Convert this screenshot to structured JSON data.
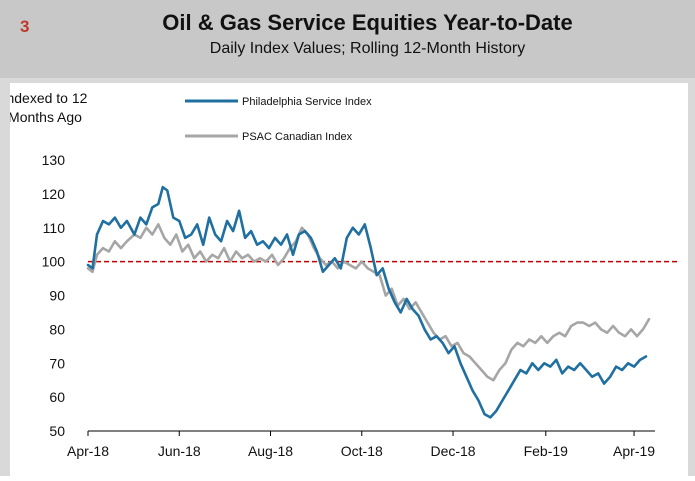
{
  "page": {
    "slide_number": "3",
    "title": "Oil & Gas Service Equities Year-to-Date",
    "subtitle": "Daily Index Values; Rolling 12-Month History"
  },
  "colors": {
    "philadelphia": "#1f6fa0",
    "psac": "#a6a6a6",
    "reference": "#c00000",
    "slide_number": "#c0392b"
  },
  "chart_data": {
    "type": "line",
    "title": "Oil & Gas Service Equities Year-to-Date",
    "subtitle": "Daily Index Values; Rolling 12-Month History",
    "ylabel_lines": [
      "Indexed to 12",
      "Months Ago"
    ],
    "xlabel": "",
    "ylim": [
      50,
      130
    ],
    "yticks": [
      50,
      60,
      70,
      80,
      90,
      100,
      110,
      120,
      130
    ],
    "x_tick_labels": [
      "Apr-18",
      "Jun-18",
      "Aug-18",
      "Oct-18",
      "Dec-18",
      "Feb-19",
      "Apr-19"
    ],
    "x_tick_dates": [
      "2018-04-01",
      "2018-06-01",
      "2018-08-01",
      "2018-10-01",
      "2018-12-01",
      "2019-02-01",
      "2019-04-01"
    ],
    "xlim": [
      "2018-04-01",
      "2019-04-15"
    ],
    "reference_line": {
      "y": 100,
      "style": "dashed"
    },
    "grid": false,
    "legend_position": "top",
    "series": [
      {
        "name": "Philadelphia Service Index",
        "points": [
          [
            "2018-04-01",
            99
          ],
          [
            "2018-04-04",
            98
          ],
          [
            "2018-04-07",
            108
          ],
          [
            "2018-04-11",
            112
          ],
          [
            "2018-04-15",
            111
          ],
          [
            "2018-04-19",
            113
          ],
          [
            "2018-04-23",
            110
          ],
          [
            "2018-04-27",
            112
          ],
          [
            "2018-05-02",
            108
          ],
          [
            "2018-05-06",
            113
          ],
          [
            "2018-05-10",
            111
          ],
          [
            "2018-05-14",
            116
          ],
          [
            "2018-05-18",
            117
          ],
          [
            "2018-05-21",
            122
          ],
          [
            "2018-05-24",
            121
          ],
          [
            "2018-05-28",
            113
          ],
          [
            "2018-06-01",
            112
          ],
          [
            "2018-06-05",
            107
          ],
          [
            "2018-06-09",
            108
          ],
          [
            "2018-06-13",
            111
          ],
          [
            "2018-06-17",
            105
          ],
          [
            "2018-06-21",
            113
          ],
          [
            "2018-06-25",
            108
          ],
          [
            "2018-06-29",
            106
          ],
          [
            "2018-07-03",
            112
          ],
          [
            "2018-07-07",
            109
          ],
          [
            "2018-07-11",
            115
          ],
          [
            "2018-07-15",
            107
          ],
          [
            "2018-07-19",
            109
          ],
          [
            "2018-07-23",
            105
          ],
          [
            "2018-07-27",
            106
          ],
          [
            "2018-07-31",
            104
          ],
          [
            "2018-08-04",
            107
          ],
          [
            "2018-08-08",
            105
          ],
          [
            "2018-08-12",
            108
          ],
          [
            "2018-08-16",
            102
          ],
          [
            "2018-08-20",
            108
          ],
          [
            "2018-08-24",
            109
          ],
          [
            "2018-08-28",
            107
          ],
          [
            "2018-09-01",
            103
          ],
          [
            "2018-09-05",
            97
          ],
          [
            "2018-09-09",
            99
          ],
          [
            "2018-09-13",
            101
          ],
          [
            "2018-09-17",
            98
          ],
          [
            "2018-09-21",
            107
          ],
          [
            "2018-09-25",
            110
          ],
          [
            "2018-09-29",
            108
          ],
          [
            "2018-10-03",
            111
          ],
          [
            "2018-10-07",
            104
          ],
          [
            "2018-10-11",
            96
          ],
          [
            "2018-10-15",
            98
          ],
          [
            "2018-10-19",
            92
          ],
          [
            "2018-10-23",
            88
          ],
          [
            "2018-10-27",
            85
          ],
          [
            "2018-10-31",
            89
          ],
          [
            "2018-11-04",
            86
          ],
          [
            "2018-11-08",
            84
          ],
          [
            "2018-11-12",
            80
          ],
          [
            "2018-11-16",
            77
          ],
          [
            "2018-11-20",
            78
          ],
          [
            "2018-11-24",
            76
          ],
          [
            "2018-11-28",
            73
          ],
          [
            "2018-12-02",
            75
          ],
          [
            "2018-12-06",
            70
          ],
          [
            "2018-12-10",
            66
          ],
          [
            "2018-12-14",
            62
          ],
          [
            "2018-12-18",
            59
          ],
          [
            "2018-12-22",
            55
          ],
          [
            "2018-12-26",
            54
          ],
          [
            "2018-12-30",
            56
          ],
          [
            "2019-01-03",
            59
          ],
          [
            "2019-01-07",
            62
          ],
          [
            "2019-01-11",
            65
          ],
          [
            "2019-01-15",
            68
          ],
          [
            "2019-01-19",
            67
          ],
          [
            "2019-01-23",
            70
          ],
          [
            "2019-01-27",
            68
          ],
          [
            "2019-01-31",
            70
          ],
          [
            "2019-02-04",
            69
          ],
          [
            "2019-02-08",
            71
          ],
          [
            "2019-02-12",
            67
          ],
          [
            "2019-02-16",
            69
          ],
          [
            "2019-02-20",
            68
          ],
          [
            "2019-02-24",
            70
          ],
          [
            "2019-02-28",
            68
          ],
          [
            "2019-03-04",
            66
          ],
          [
            "2019-03-08",
            67
          ],
          [
            "2019-03-12",
            64
          ],
          [
            "2019-03-16",
            66
          ],
          [
            "2019-03-20",
            69
          ],
          [
            "2019-03-24",
            68
          ],
          [
            "2019-03-28",
            70
          ],
          [
            "2019-04-01",
            69
          ],
          [
            "2019-04-05",
            71
          ],
          [
            "2019-04-09",
            72
          ]
        ]
      },
      {
        "name": "PSAC Canadian Index",
        "points": [
          [
            "2018-04-01",
            98
          ],
          [
            "2018-04-04",
            97
          ],
          [
            "2018-04-07",
            102
          ],
          [
            "2018-04-11",
            104
          ],
          [
            "2018-04-15",
            103
          ],
          [
            "2018-04-19",
            106
          ],
          [
            "2018-04-23",
            104
          ],
          [
            "2018-04-27",
            106
          ],
          [
            "2018-05-02",
            108
          ],
          [
            "2018-05-06",
            107
          ],
          [
            "2018-05-10",
            110
          ],
          [
            "2018-05-14",
            108
          ],
          [
            "2018-05-18",
            111
          ],
          [
            "2018-05-22",
            107
          ],
          [
            "2018-05-26",
            105
          ],
          [
            "2018-05-30",
            108
          ],
          [
            "2018-06-03",
            103
          ],
          [
            "2018-06-07",
            105
          ],
          [
            "2018-06-11",
            101
          ],
          [
            "2018-06-15",
            103
          ],
          [
            "2018-06-19",
            100
          ],
          [
            "2018-06-23",
            102
          ],
          [
            "2018-06-27",
            101
          ],
          [
            "2018-07-01",
            104
          ],
          [
            "2018-07-05",
            100
          ],
          [
            "2018-07-09",
            103
          ],
          [
            "2018-07-13",
            101
          ],
          [
            "2018-07-17",
            102
          ],
          [
            "2018-07-21",
            100
          ],
          [
            "2018-07-25",
            101
          ],
          [
            "2018-07-29",
            100
          ],
          [
            "2018-08-02",
            102
          ],
          [
            "2018-08-06",
            99
          ],
          [
            "2018-08-10",
            101
          ],
          [
            "2018-08-14",
            104
          ],
          [
            "2018-08-18",
            106
          ],
          [
            "2018-08-22",
            110
          ],
          [
            "2018-08-26",
            108
          ],
          [
            "2018-08-30",
            104
          ],
          [
            "2018-09-03",
            101
          ],
          [
            "2018-09-07",
            99
          ],
          [
            "2018-09-11",
            100
          ],
          [
            "2018-09-15",
            98
          ],
          [
            "2018-09-19",
            100
          ],
          [
            "2018-09-23",
            99
          ],
          [
            "2018-09-27",
            98
          ],
          [
            "2018-10-01",
            100
          ],
          [
            "2018-10-05",
            98
          ],
          [
            "2018-10-09",
            97
          ],
          [
            "2018-10-13",
            96
          ],
          [
            "2018-10-17",
            90
          ],
          [
            "2018-10-21",
            92
          ],
          [
            "2018-10-25",
            87
          ],
          [
            "2018-10-29",
            89
          ],
          [
            "2018-11-02",
            86
          ],
          [
            "2018-11-06",
            88
          ],
          [
            "2018-11-10",
            85
          ],
          [
            "2018-11-14",
            82
          ],
          [
            "2018-11-18",
            79
          ],
          [
            "2018-11-22",
            77
          ],
          [
            "2018-11-26",
            78
          ],
          [
            "2018-11-30",
            75
          ],
          [
            "2018-12-04",
            76
          ],
          [
            "2018-12-08",
            73
          ],
          [
            "2018-12-12",
            72
          ],
          [
            "2018-12-16",
            70
          ],
          [
            "2018-12-20",
            68
          ],
          [
            "2018-12-24",
            66
          ],
          [
            "2018-12-28",
            65
          ],
          [
            "2019-01-01",
            68
          ],
          [
            "2019-01-05",
            70
          ],
          [
            "2019-01-09",
            74
          ],
          [
            "2019-01-13",
            76
          ],
          [
            "2019-01-17",
            75
          ],
          [
            "2019-01-21",
            77
          ],
          [
            "2019-01-25",
            76
          ],
          [
            "2019-01-29",
            78
          ],
          [
            "2019-02-02",
            76
          ],
          [
            "2019-02-06",
            78
          ],
          [
            "2019-02-10",
            79
          ],
          [
            "2019-02-14",
            78
          ],
          [
            "2019-02-18",
            81
          ],
          [
            "2019-02-22",
            82
          ],
          [
            "2019-02-26",
            82
          ],
          [
            "2019-03-02",
            81
          ],
          [
            "2019-03-06",
            82
          ],
          [
            "2019-03-10",
            80
          ],
          [
            "2019-03-14",
            79
          ],
          [
            "2019-03-18",
            81
          ],
          [
            "2019-03-22",
            79
          ],
          [
            "2019-03-26",
            78
          ],
          [
            "2019-03-30",
            80
          ],
          [
            "2019-04-03",
            78
          ],
          [
            "2019-04-07",
            80
          ],
          [
            "2019-04-11",
            83
          ]
        ]
      }
    ]
  }
}
